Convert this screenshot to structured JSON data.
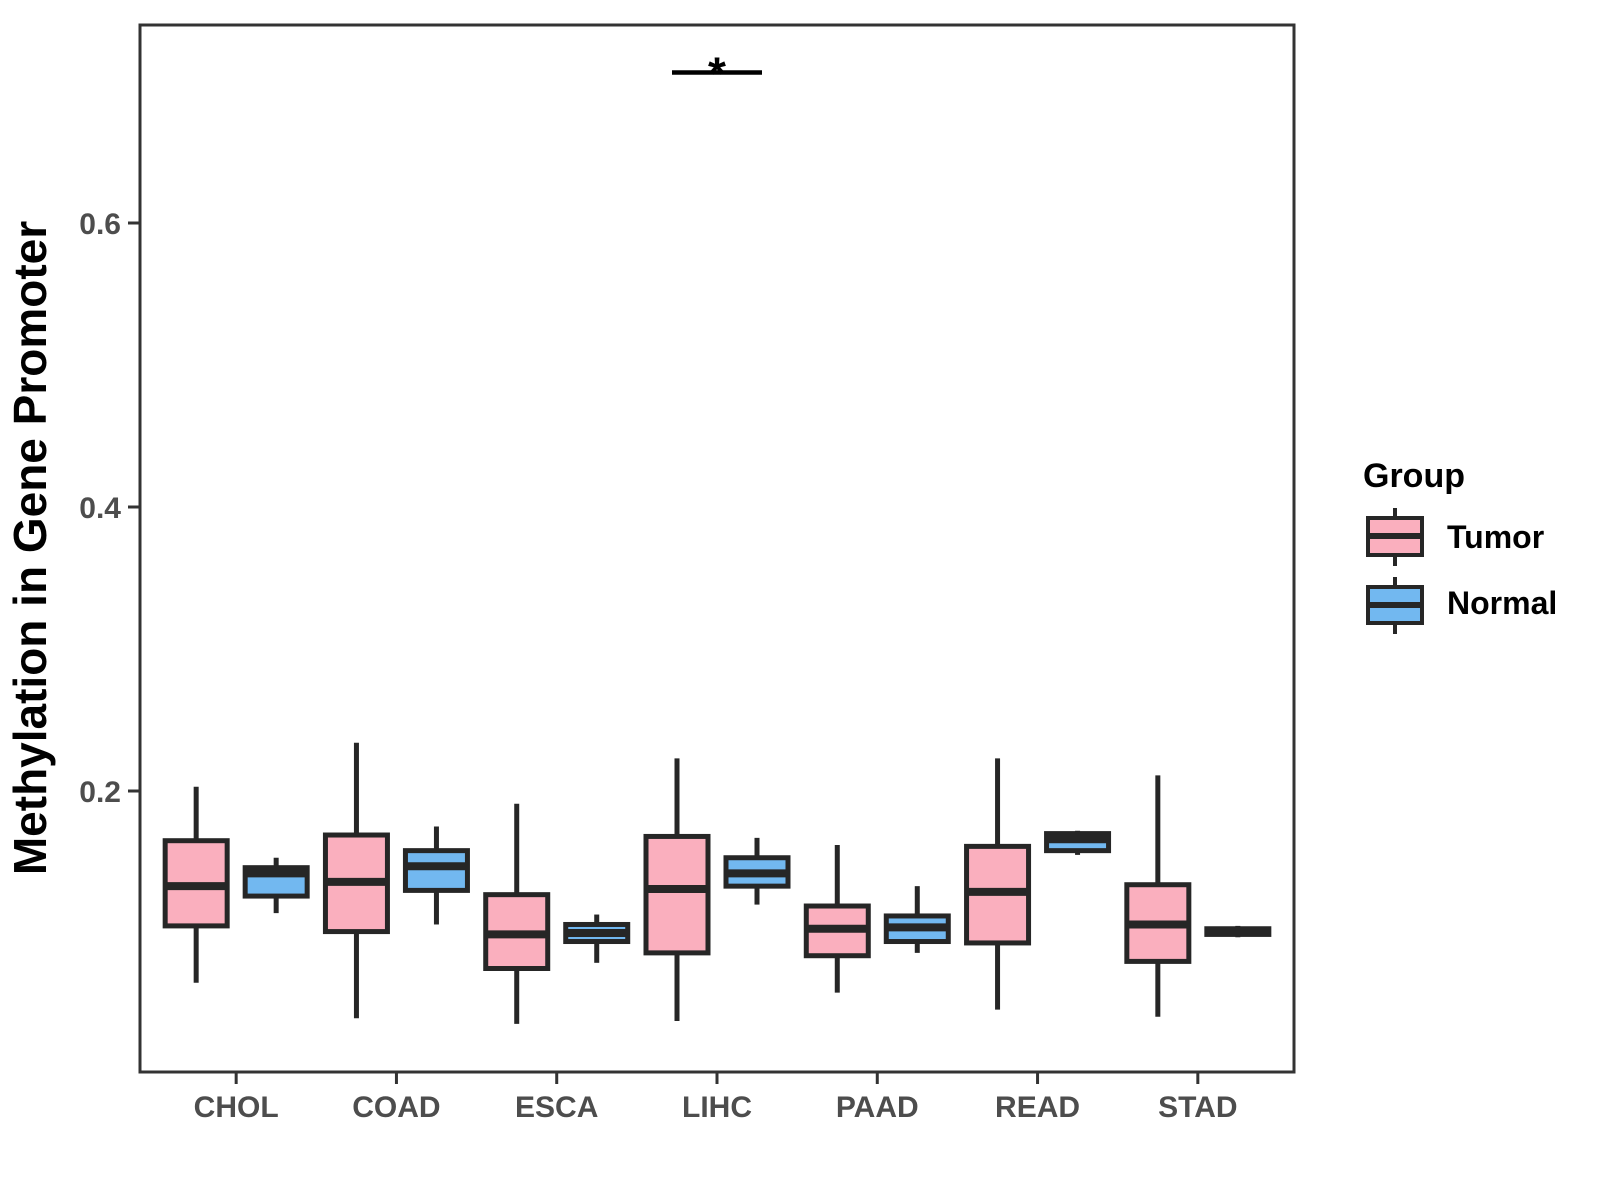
{
  "figure": {
    "y_axis": {
      "title": "Methylation in Gene Promoter",
      "ticks": [
        0.2,
        0.4,
        0.6
      ],
      "tick_labels": [
        "0.2",
        "0.4",
        "0.6"
      ],
      "range": [
        0,
        0.74
      ]
    },
    "x_axis": {
      "categories": [
        "CHOL",
        "COAD",
        "ESCA",
        "LIHC",
        "PAAD",
        "READ",
        "STAD"
      ]
    },
    "legend": {
      "title": "Group",
      "entries": [
        {
          "label": "Tumor",
          "color": "#FAAFBE"
        },
        {
          "label": "Normal",
          "color": "#72B8F0"
        }
      ]
    },
    "significance": {
      "category": "LIHC",
      "symbol": "*",
      "bar_y": 0.706
    },
    "colors": {
      "tumor_fill": "#FAAFBE",
      "normal_fill": "#72B8F0",
      "box_stroke": "#262626",
      "panel_border": "#333333",
      "axis_text": "#4d4d4d",
      "significance": "#000000",
      "background": "#ffffff"
    }
  },
  "chart_data": {
    "type": "boxplot",
    "title": "",
    "xlabel": "",
    "ylabel": "Methylation in Gene Promoter",
    "ylim": [
      0,
      0.74
    ],
    "grid": false,
    "legend_position": "right",
    "categories": [
      "CHOL",
      "COAD",
      "ESCA",
      "LIHC",
      "PAAD",
      "READ",
      "STAD"
    ],
    "stats_order": [
      "whisker_low",
      "q1",
      "median",
      "q3",
      "whisker_high"
    ],
    "series": [
      {
        "name": "Tumor",
        "color": "#FAAFBE",
        "boxes": [
          [
            0.065,
            0.105,
            0.133,
            0.165,
            0.203
          ],
          [
            0.04,
            0.101,
            0.136,
            0.169,
            0.234
          ],
          [
            0.036,
            0.075,
            0.099,
            0.127,
            0.191
          ],
          [
            0.038,
            0.086,
            0.131,
            0.168,
            0.223
          ],
          [
            0.058,
            0.084,
            0.103,
            0.119,
            0.162
          ],
          [
            0.046,
            0.093,
            0.129,
            0.161,
            0.223
          ],
          [
            0.041,
            0.08,
            0.106,
            0.134,
            0.211
          ]
        ]
      },
      {
        "name": "Normal",
        "color": "#72B8F0",
        "boxes": [
          [
            0.114,
            0.126,
            0.142,
            0.146,
            0.153
          ],
          [
            0.106,
            0.13,
            0.147,
            0.158,
            0.175
          ],
          [
            0.079,
            0.094,
            0.1,
            0.106,
            0.113
          ],
          [
            0.12,
            0.133,
            0.142,
            0.153,
            0.167
          ],
          [
            0.086,
            0.094,
            0.104,
            0.112,
            0.133
          ],
          [
            0.155,
            0.158,
            0.166,
            0.17,
            0.172
          ],
          [
            0.097,
            0.099,
            0.101,
            0.103,
            0.105
          ]
        ]
      }
    ],
    "annotations": [
      {
        "type": "significance-bar",
        "category": "LIHC",
        "label": "*",
        "y": 0.706
      }
    ]
  }
}
